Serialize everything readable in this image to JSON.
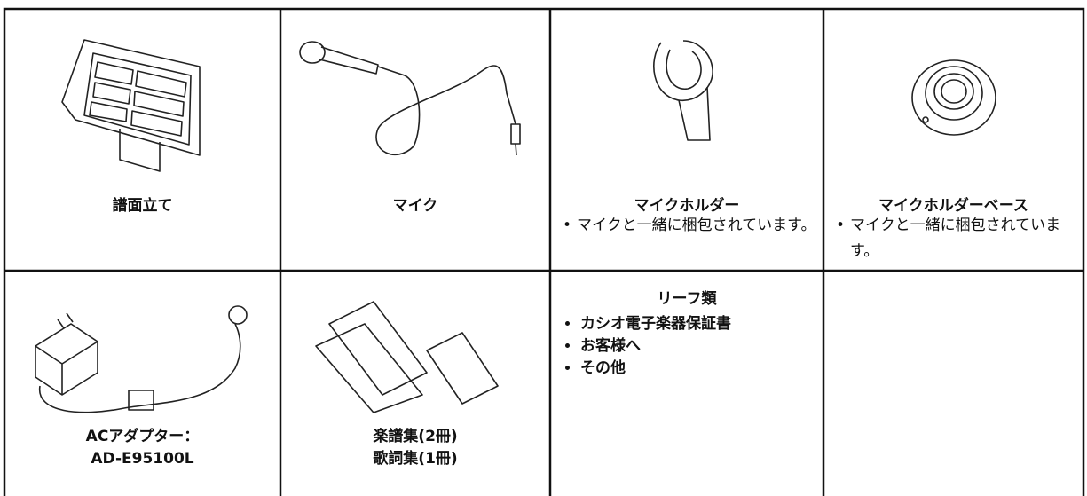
{
  "table": {
    "rows": [
      [
        {
          "title": "譜面立て"
        },
        {
          "title": "マイク"
        },
        {
          "title": "マイクホルダー",
          "note": "マイクと一緒に梱包されています。"
        },
        {
          "title": "マイクホルダーベース",
          "note": "マイクと一緒に梱包されています。"
        }
      ],
      [
        {
          "title_lines": [
            "ACアダプター：",
            "AD-E95100L"
          ]
        },
        {
          "title_lines": [
            "楽譜集(2冊)",
            "歌詞集(1冊)"
          ]
        },
        {
          "title": "リーフ類",
          "items": [
            "カシオ電子楽器保証書",
            "お客様へ",
            "その他"
          ]
        }
      ]
    ]
  }
}
